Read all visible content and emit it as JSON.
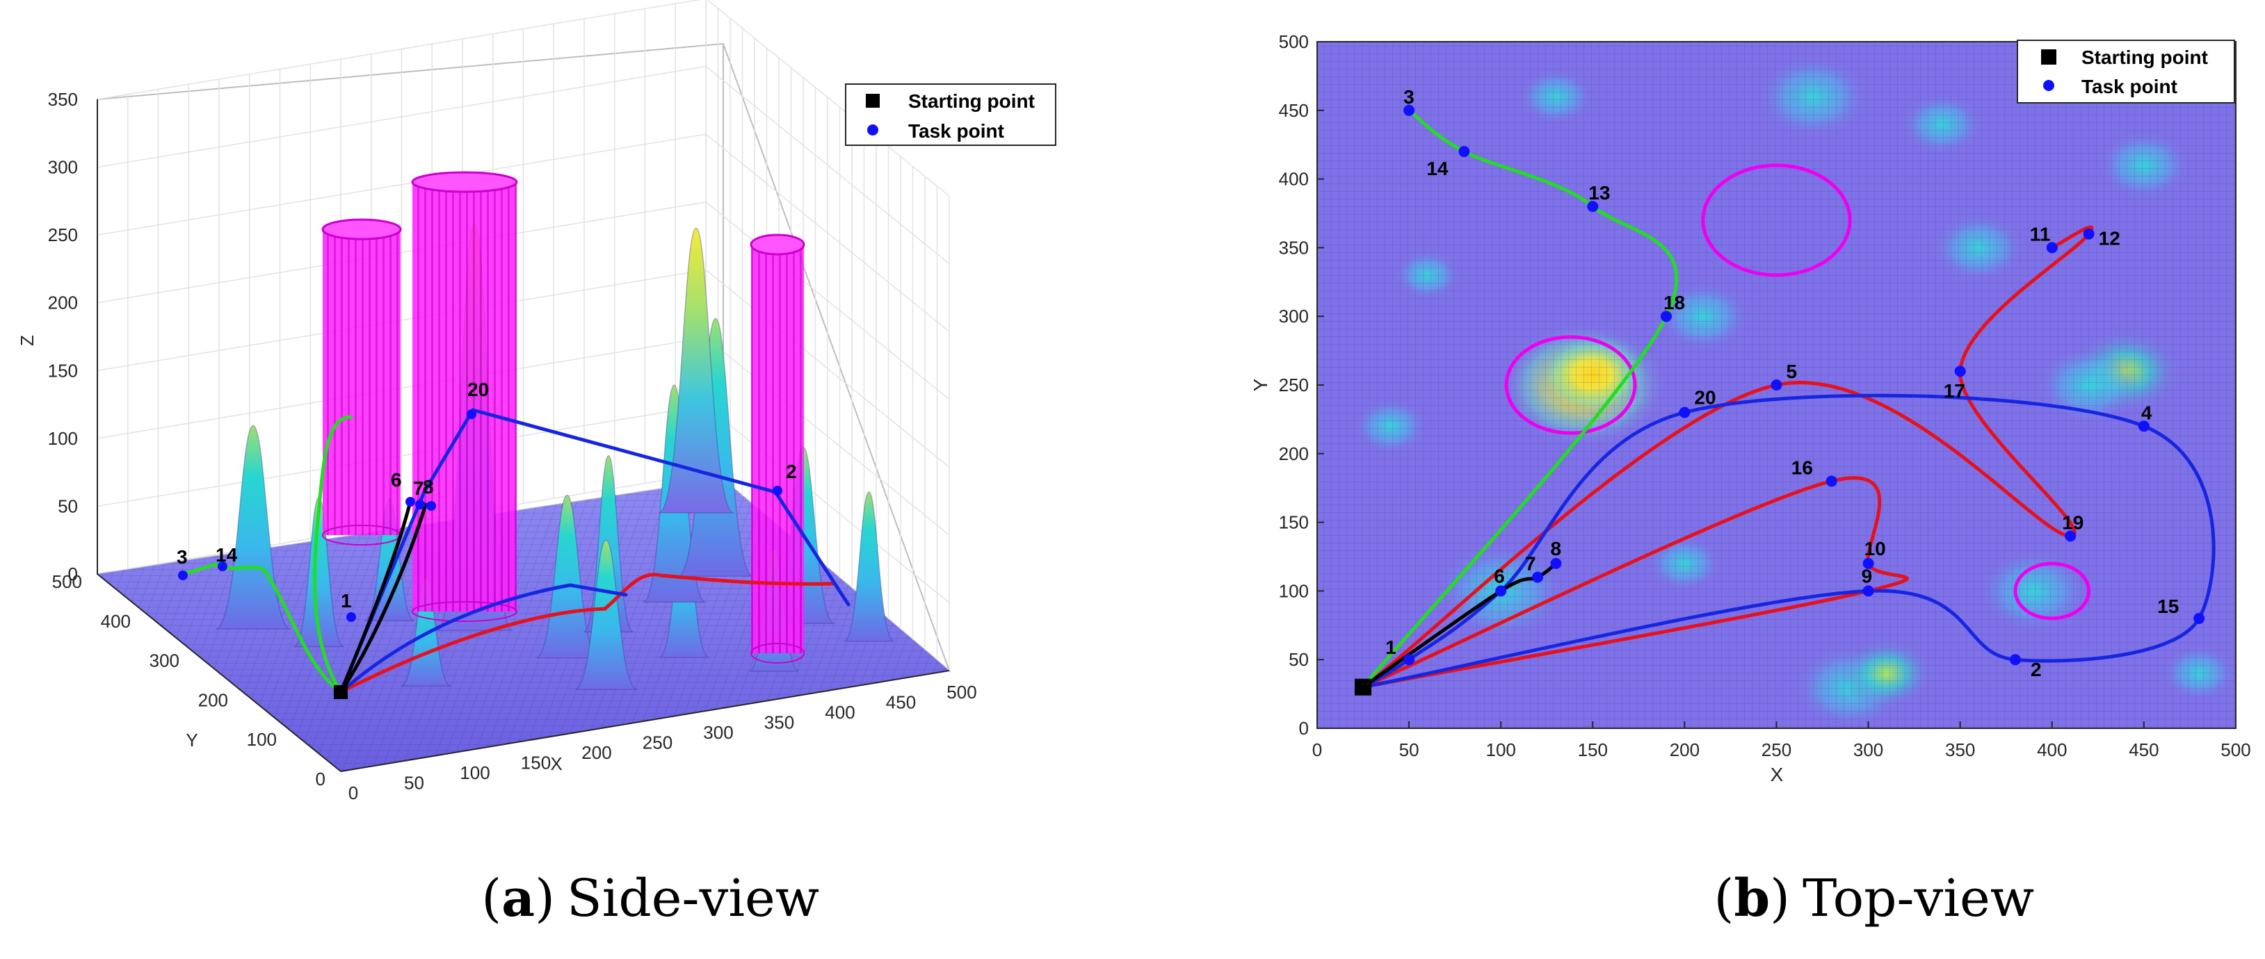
{
  "captions": {
    "a_letter": "a",
    "a_text": "Side-view",
    "b_letter": "b",
    "b_text": "Top-view"
  },
  "legend": {
    "start_label": "Starting point",
    "task_label": "Task point"
  },
  "colors": {
    "start": "#000000",
    "task": "#1010ff",
    "path_red": "#e8101a",
    "path_blue": "#1626e0",
    "path_green": "#22dd22",
    "path_black": "#000000",
    "threat": "#ee00ee",
    "terrain_low": "#7f72e8",
    "terrain_mid": "#2ed0dd",
    "terrain_high": "#f4ea3a"
  },
  "chart_data": [
    {
      "type": "scatter",
      "view": "3d-side",
      "xlabel": "X",
      "ylabel": "Y",
      "zlabel": "Z",
      "xlim": [
        0,
        500
      ],
      "ylim": [
        0,
        500
      ],
      "zlim": [
        0,
        350
      ],
      "x_ticks": [
        "0",
        "50",
        "100",
        "150",
        "200",
        "250",
        "300",
        "350",
        "400",
        "450",
        "500"
      ],
      "y_ticks": [
        "0",
        "100",
        "200",
        "300",
        "400",
        "500"
      ],
      "z_ticks": [
        "0",
        "50",
        "100",
        "150",
        "200",
        "250",
        "300",
        "350"
      ],
      "legend_position": "top-right",
      "grid": true,
      "point_labels": [
        "3",
        "14",
        "1",
        "6",
        "7",
        "8",
        "20",
        "2"
      ]
    },
    {
      "type": "scatter",
      "view": "top",
      "xlabel": "X",
      "ylabel": "Y",
      "xlim": [
        0,
        500
      ],
      "ylim": [
        0,
        500
      ],
      "x_ticks": [
        "0",
        "50",
        "100",
        "150",
        "200",
        "250",
        "300",
        "350",
        "400",
        "450",
        "500"
      ],
      "y_ticks": [
        "0",
        "50",
        "100",
        "150",
        "200",
        "250",
        "300",
        "350",
        "400",
        "450",
        "500"
      ],
      "legend_position": "top-right",
      "grid": true,
      "start": {
        "x": 25,
        "y": 30
      },
      "points": [
        {
          "label": "1",
          "x": 50,
          "y": 50
        },
        {
          "label": "2",
          "x": 380,
          "y": 50
        },
        {
          "label": "3",
          "x": 50,
          "y": 450
        },
        {
          "label": "4",
          "x": 450,
          "y": 220
        },
        {
          "label": "5",
          "x": 250,
          "y": 250
        },
        {
          "label": "6",
          "x": 100,
          "y": 100
        },
        {
          "label": "7",
          "x": 120,
          "y": 110
        },
        {
          "label": "8",
          "x": 130,
          "y": 120
        },
        {
          "label": "9",
          "x": 300,
          "y": 100
        },
        {
          "label": "10",
          "x": 300,
          "y": 120
        },
        {
          "label": "11",
          "x": 400,
          "y": 350
        },
        {
          "label": "12",
          "x": 420,
          "y": 360
        },
        {
          "label": "13",
          "x": 150,
          "y": 380
        },
        {
          "label": "14",
          "x": 80,
          "y": 420
        },
        {
          "label": "15",
          "x": 480,
          "y": 80
        },
        {
          "label": "16",
          "x": 280,
          "y": 180
        },
        {
          "label": "17",
          "x": 350,
          "y": 260
        },
        {
          "label": "18",
          "x": 190,
          "y": 300
        },
        {
          "label": "19",
          "x": 410,
          "y": 140
        },
        {
          "label": "20",
          "x": 200,
          "y": 230
        }
      ],
      "threat_circles": [
        {
          "x": 250,
          "y": 370,
          "r": 40
        },
        {
          "x": 138,
          "y": 250,
          "r": 35
        },
        {
          "x": 400,
          "y": 100,
          "r": 20
        }
      ],
      "paths": [
        {
          "color": "red",
          "points": [
            [
              25,
              30
            ],
            [
              280,
              180
            ],
            [
              300,
              120
            ],
            [
              300,
              100
            ],
            [
              25,
              30
            ]
          ]
        },
        {
          "color": "red",
          "points": [
            [
              25,
              30
            ],
            [
              250,
              250
            ],
            [
              410,
              140
            ],
            [
              350,
              260
            ],
            [
              420,
              360
            ],
            [
              400,
              350
            ]
          ]
        },
        {
          "color": "blue",
          "points": [
            [
              25,
              30
            ],
            [
              50,
              50
            ],
            [
              100,
              100
            ],
            [
              200,
              230
            ],
            [
              450,
              220
            ],
            [
              480,
              80
            ],
            [
              380,
              50
            ],
            [
              300,
              100
            ],
            [
              25,
              30
            ]
          ]
        },
        {
          "color": "green",
          "points": [
            [
              25,
              30
            ],
            [
              190,
              300
            ],
            [
              150,
              380
            ],
            [
              80,
              420
            ],
            [
              50,
              450
            ]
          ]
        },
        {
          "color": "black",
          "points": [
            [
              25,
              30
            ],
            [
              100,
              100
            ],
            [
              120,
              110
            ],
            [
              130,
              120
            ]
          ]
        }
      ]
    }
  ]
}
